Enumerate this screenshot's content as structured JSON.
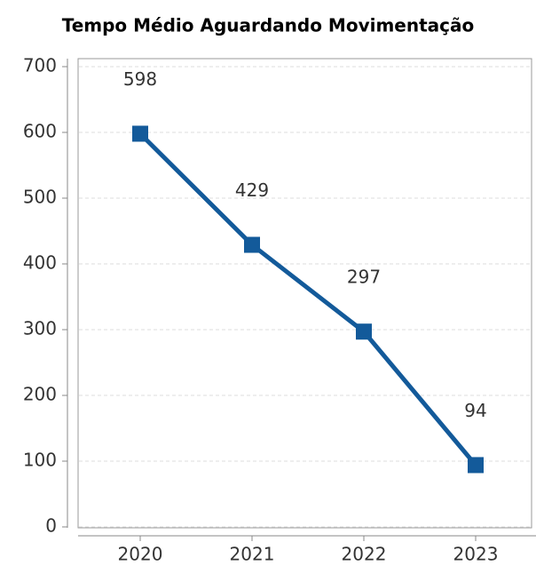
{
  "chart_data": {
    "type": "line",
    "title": "Tempo Médio Aguardando Movimentação",
    "categories": [
      "2020",
      "2021",
      "2022",
      "2023"
    ],
    "series": [
      {
        "name": "Tempo Médio",
        "color": "#135a9a",
        "values": [
          598,
          429,
          297,
          94
        ]
      }
    ],
    "ylim": [
      0,
      700
    ],
    "yticks": [
      0,
      100,
      200,
      300,
      400,
      500,
      600,
      700
    ],
    "grid": true
  }
}
